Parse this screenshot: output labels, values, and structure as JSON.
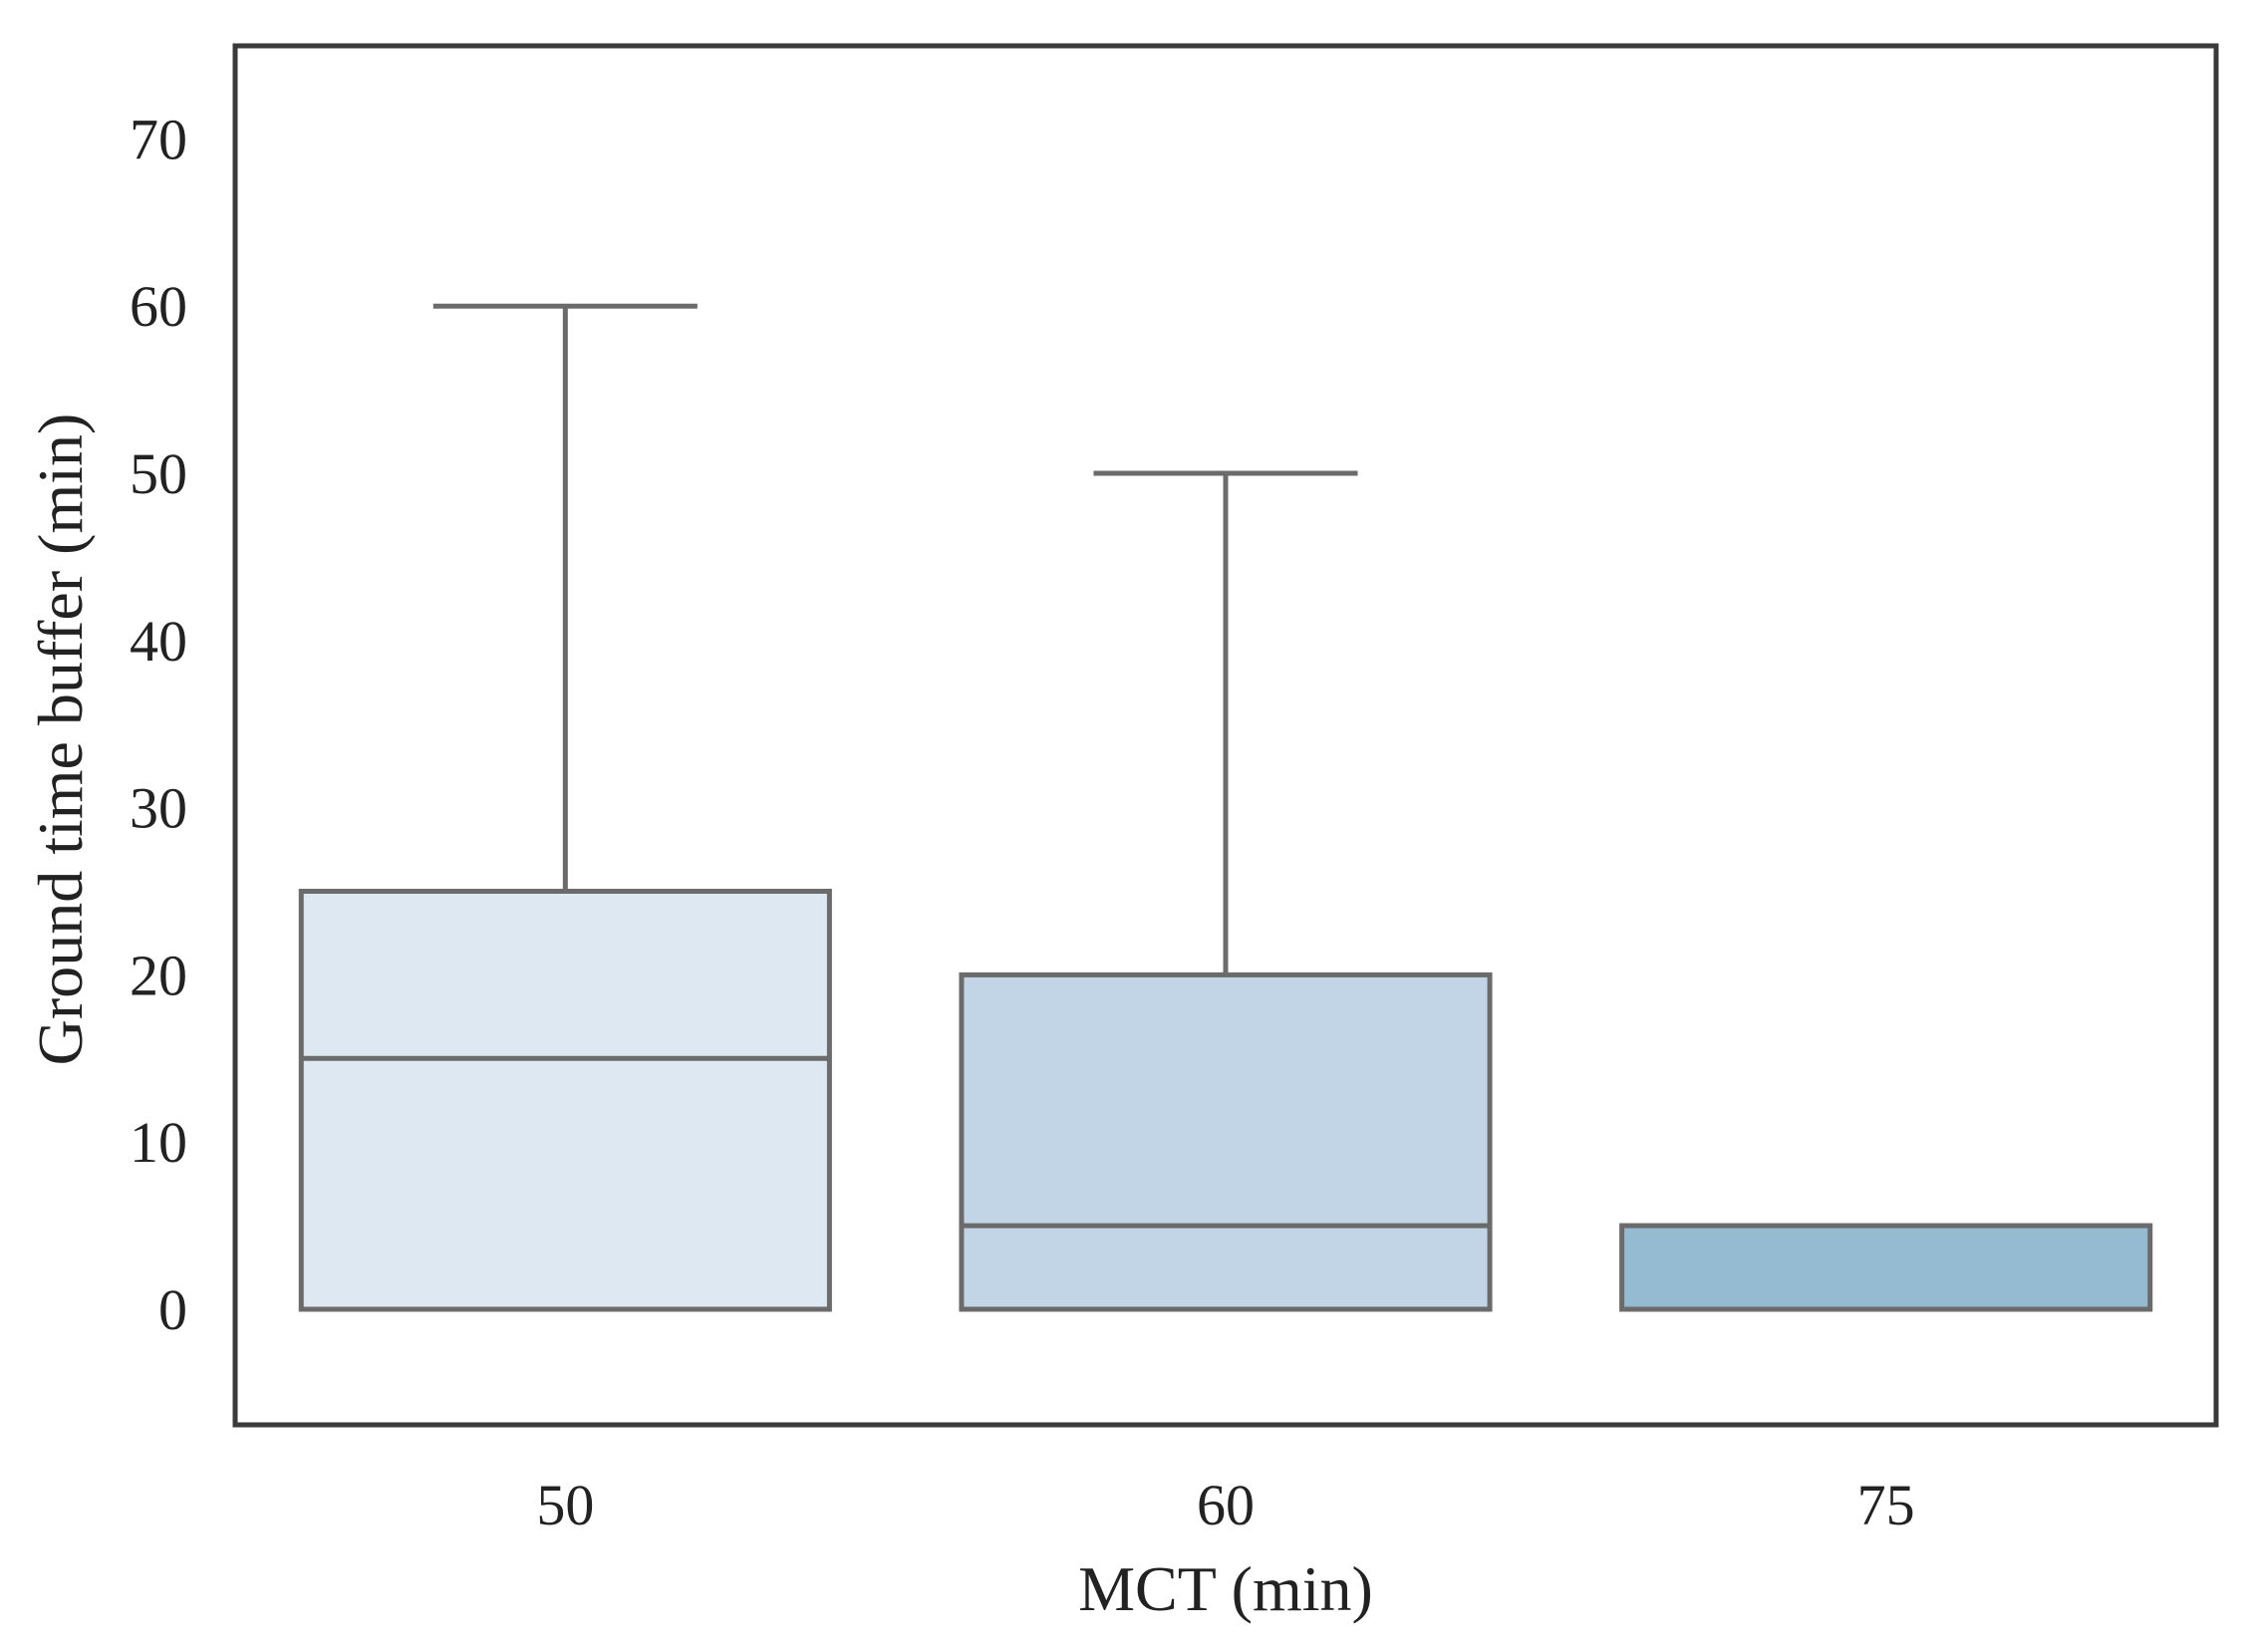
{
  "chart_data": {
    "type": "box",
    "title": "",
    "xlabel": "MCT (min)",
    "ylabel": "Ground time buffer (min)",
    "ylim": [
      -7,
      75
    ],
    "yticks": [
      "0",
      "10",
      "20",
      "30",
      "40",
      "50",
      "60",
      "70"
    ],
    "ytick_values": [
      0,
      10,
      20,
      30,
      40,
      50,
      60,
      70
    ],
    "categories": [
      "50",
      "60",
      "75"
    ],
    "boxes": [
      {
        "category": "50",
        "whisker_low": 0,
        "q1": 0,
        "median": 15,
        "q3": 25,
        "whisker_high": 60,
        "color": "#dde8f2"
      },
      {
        "category": "60",
        "whisker_low": 0,
        "q1": 0,
        "median": 5,
        "q3": 20,
        "whisker_high": 50,
        "color": "#c2d5e6"
      },
      {
        "category": "75",
        "whisker_low": 0,
        "q1": 0,
        "median": 0,
        "q3": 5,
        "whisker_high": 5,
        "color": "#94bbd2"
      }
    ],
    "grid": false,
    "legend": "none",
    "line_color": "#6b6b6b",
    "frame_color": "#3a3a3a"
  }
}
